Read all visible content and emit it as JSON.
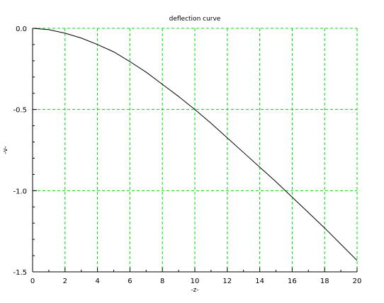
{
  "chart_data": {
    "type": "line",
    "title": "deflection curve",
    "xlabel": "-z-",
    "ylabel": "-v-",
    "xlim": [
      0,
      20
    ],
    "ylim": [
      -1.5,
      0.0
    ],
    "x_ticks": [
      0,
      2,
      4,
      6,
      8,
      10,
      12,
      14,
      16,
      18,
      20
    ],
    "x_tick_labels": [
      "0",
      "2",
      "4",
      "6",
      "8",
      "10",
      "12",
      "14",
      "16",
      "18",
      "20"
    ],
    "y_ticks": [
      0.0,
      -0.5,
      -1.0,
      -1.5
    ],
    "y_tick_labels": [
      "0.0",
      "-0.5",
      "-1.0",
      "-1.5"
    ],
    "grid": true,
    "grid_x": [
      2,
      4,
      6,
      8,
      10,
      12,
      14,
      16,
      18,
      20
    ],
    "grid_y": [
      0.0,
      -0.5,
      -1.0
    ],
    "series": [
      {
        "color": "#000000",
        "x": [
          0,
          1,
          2,
          3,
          4,
          5,
          6,
          7,
          8,
          9,
          10,
          11,
          12,
          13,
          14,
          15,
          16,
          17,
          18,
          19,
          20
        ],
        "y": [
          0.0,
          -0.008,
          -0.03,
          -0.06,
          -0.1,
          -0.145,
          -0.205,
          -0.27,
          -0.345,
          -0.42,
          -0.5,
          -0.585,
          -0.675,
          -0.765,
          -0.855,
          -0.945,
          -1.04,
          -1.135,
          -1.23,
          -1.33,
          -1.43
        ]
      }
    ],
    "colors": {
      "grid": "#00dd00",
      "axis": "#000000",
      "line": "#000000"
    }
  }
}
